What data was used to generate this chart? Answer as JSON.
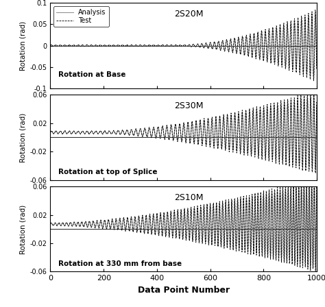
{
  "title1": "2S20M",
  "title2": "2S30M",
  "title3": "2S10M",
  "label1": "Rotation at Base",
  "label2": "Rotation at top of Splice",
  "label3": "Rotation at 330 mm from base",
  "xlabel": "Data Point Number",
  "ylabel": "Rotation (rad)",
  "xlim": [
    0,
    1000
  ],
  "ylim1": [
    -0.1,
    0.1
  ],
  "ylim2": [
    -0.06,
    0.06
  ],
  "ylim3": [
    -0.06,
    0.06
  ],
  "yticks1": [
    -0.1,
    -0.05,
    0,
    0.05,
    0.1
  ],
  "yticks2": [
    -0.06,
    -0.02,
    0.02,
    0.06
  ],
  "yticks3": [
    -0.06,
    -0.02,
    0.02,
    0.06
  ],
  "legend_test": "Test",
  "legend_analysis": "Analysis",
  "n_points": 1000
}
